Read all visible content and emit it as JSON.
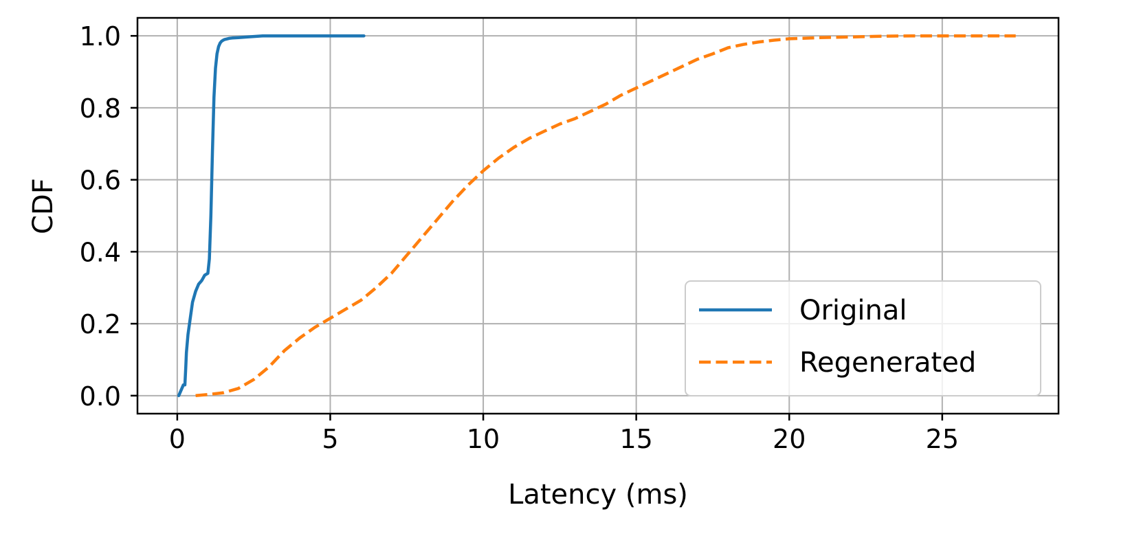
{
  "chart_data": {
    "type": "line",
    "xlabel": "Latency (ms)",
    "ylabel": "CDF",
    "xlim": [
      -1.3,
      28.8
    ],
    "ylim": [
      -0.05,
      1.05
    ],
    "xticks": [
      0,
      5,
      10,
      15,
      20,
      25
    ],
    "xtick_labels": [
      "0",
      "5",
      "10",
      "15",
      "20",
      "25"
    ],
    "yticks": [
      0.0,
      0.2,
      0.4,
      0.6,
      0.8,
      1.0
    ],
    "ytick_labels": [
      "0.0",
      "0.2",
      "0.4",
      "0.6",
      "0.8",
      "1.0"
    ],
    "grid": true,
    "legend_position": "lower-right",
    "series": [
      {
        "name": "Original",
        "color": "#1f77b4",
        "style": "solid",
        "x": [
          0.05,
          0.1,
          0.15,
          0.2,
          0.25,
          0.28,
          0.3,
          0.35,
          0.4,
          0.5,
          0.6,
          0.7,
          0.8,
          0.9,
          1.0,
          1.05,
          1.1,
          1.15,
          1.2,
          1.25,
          1.3,
          1.35,
          1.4,
          1.45,
          1.5,
          1.55,
          1.6,
          1.7,
          1.8,
          2.0,
          2.3,
          2.8,
          3.5,
          4.5,
          5.5,
          6.1
        ],
        "y": [
          0.0,
          0.01,
          0.02,
          0.03,
          0.03,
          0.08,
          0.12,
          0.17,
          0.2,
          0.26,
          0.29,
          0.31,
          0.32,
          0.335,
          0.34,
          0.38,
          0.5,
          0.68,
          0.83,
          0.91,
          0.95,
          0.97,
          0.98,
          0.985,
          0.988,
          0.99,
          0.991,
          0.993,
          0.994,
          0.995,
          0.997,
          1.0,
          1.0,
          1.0,
          1.0,
          1.0
        ]
      },
      {
        "name": "Regenerated",
        "color": "#ff7f0e",
        "style": "dashed",
        "x": [
          0.6,
          1.0,
          1.5,
          2.0,
          2.5,
          3.0,
          3.5,
          4.0,
          4.5,
          5.0,
          5.5,
          6.0,
          6.5,
          7.0,
          7.5,
          8.0,
          8.5,
          9.0,
          9.5,
          10.0,
          10.5,
          11.0,
          11.5,
          12.0,
          12.5,
          13.0,
          13.5,
          14.0,
          14.5,
          15.0,
          15.5,
          16.0,
          16.5,
          17.0,
          17.5,
          18.0,
          18.5,
          19.0,
          19.5,
          20.0,
          21.0,
          22.0,
          23.0,
          24.0,
          25.0,
          26.0,
          27.4
        ],
        "y": [
          0.0,
          0.003,
          0.008,
          0.02,
          0.045,
          0.08,
          0.125,
          0.16,
          0.19,
          0.215,
          0.24,
          0.265,
          0.3,
          0.34,
          0.39,
          0.44,
          0.49,
          0.54,
          0.585,
          0.625,
          0.66,
          0.69,
          0.715,
          0.735,
          0.755,
          0.77,
          0.79,
          0.81,
          0.835,
          0.855,
          0.875,
          0.895,
          0.915,
          0.935,
          0.95,
          0.967,
          0.976,
          0.983,
          0.988,
          0.992,
          0.995,
          0.997,
          0.999,
          1.0,
          1.0,
          1.0,
          1.0
        ]
      }
    ]
  }
}
